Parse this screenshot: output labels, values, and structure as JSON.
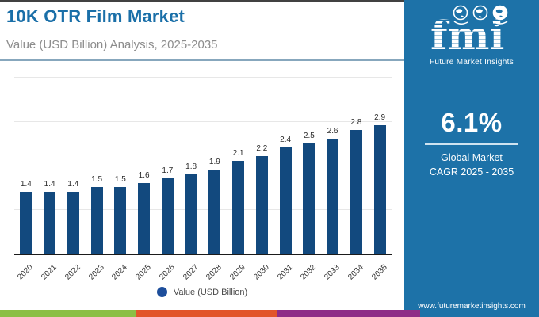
{
  "header": {
    "title": "10K OTR Film Market",
    "subtitle": "Value (USD Billion) Analysis, 2025-2035"
  },
  "chart_data": {
    "type": "bar",
    "title": "10K OTR Film Market",
    "subtitle": "Value (USD Billion) Analysis, 2025-2035",
    "categories": [
      "2020",
      "2021",
      "2022",
      "2023",
      "2024",
      "2025",
      "2026",
      "2027",
      "2028",
      "2029",
      "2030",
      "2031",
      "2032",
      "2033",
      "2034",
      "2035"
    ],
    "values": [
      1.4,
      1.4,
      1.4,
      1.5,
      1.5,
      1.6,
      1.7,
      1.8,
      1.9,
      2.1,
      2.2,
      2.4,
      2.5,
      2.6,
      2.8,
      2.9
    ],
    "series_name": "Value (USD Billion)",
    "xlabel": "",
    "ylabel": "",
    "ylim": [
      0,
      4
    ],
    "grid": "horizontal, 1.0 unit spacing, no y tick labels",
    "value_labels": true,
    "legend_position": "bottom",
    "bar_color": "#12497e"
  },
  "legend": {
    "label": "Value (USD Billion)",
    "dot_color": "#1d4e9b"
  },
  "panel": {
    "logo_text": "fmi",
    "logo_subtext": "Future Market Insights",
    "cagr_value": "6.1%",
    "cagr_line1": "Global Market",
    "cagr_line2": "CAGR 2025 - 2035",
    "website": "www.futuremarketinsights.com",
    "bg_color": "#1d72a8"
  },
  "footer_strip": {
    "colors": [
      "#8bbf45",
      "#e2552a",
      "#8e2d87"
    ]
  }
}
